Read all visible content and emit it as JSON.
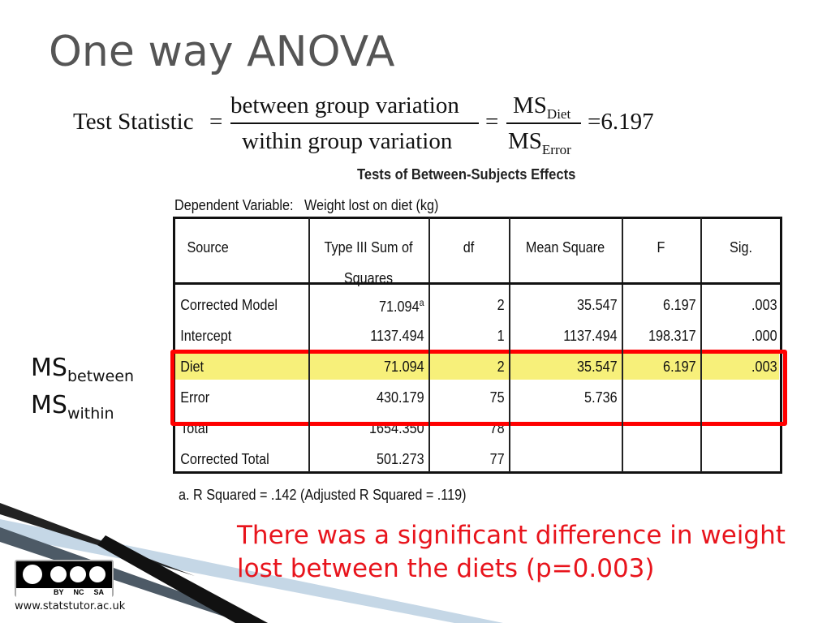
{
  "title": "One way ANOVA",
  "formula": {
    "lhs": "Test Statistic",
    "equals": "=",
    "numerator": "between group variation",
    "denominator": "within group variation",
    "ms_top": "MS",
    "ms_top_sub": "Diet",
    "ms_bottom": "MS",
    "ms_bottom_sub": "Error",
    "result": "6.197"
  },
  "table": {
    "title": "Tests of Between-Subjects Effects",
    "dependent_label": "Dependent Variable:",
    "dependent_value": "Weight lost on diet (kg)",
    "header": [
      "Source",
      "Type III Sum of Squares",
      "df",
      "Mean Square",
      "F",
      "Sig."
    ],
    "rows": [
      [
        "Corrected Model",
        "71.094",
        "2",
        "35.547",
        "6.197",
        ".003"
      ],
      [
        "Intercept",
        "1137.494",
        "1",
        "1137.494",
        "198.317",
        ".000"
      ],
      [
        "Diet",
        "71.094",
        "2",
        "35.547",
        "6.197",
        ".003"
      ],
      [
        "Error",
        "430.179",
        "75",
        "5.736"
      ],
      [
        "Total",
        "1654.350",
        "78"
      ],
      [
        "Corrected Total",
        "501.273",
        "77"
      ]
    ],
    "footnote_marker": "a",
    "footnote": "a. R Squared = .142 (Adjusted R Squared = .119)"
  },
  "side_labels": [
    {
      "main": "MS",
      "sub": "between"
    },
    {
      "main": "MS",
      "sub": "within"
    }
  ],
  "conclusion": "There was a significant difference in weight lost between the diets (p=0.003)",
  "license": {
    "items": [
      "BY",
      "NC",
      "SA"
    ],
    "website": "www.statstutor.ac.uk"
  }
}
